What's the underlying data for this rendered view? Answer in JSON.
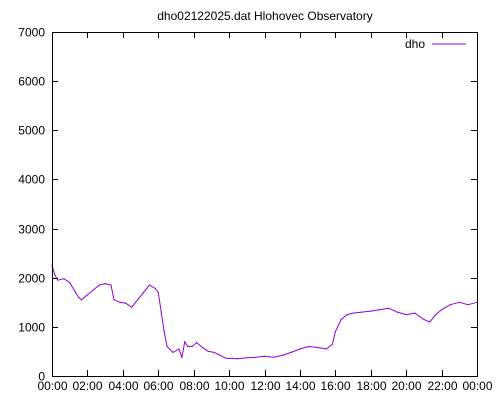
{
  "chart_data": {
    "type": "line",
    "title": "dho02122025.dat Hlohovec Observatory",
    "xlabel": "",
    "ylabel": "",
    "x_range_hours": [
      0,
      24
    ],
    "ylim": [
      0,
      7000
    ],
    "x_tick_labels": [
      "00:00",
      "02:00",
      "04:00",
      "06:00",
      "08:00",
      "10:00",
      "12:00",
      "14:00",
      "16:00",
      "18:00",
      "20:00",
      "22:00",
      "00:00"
    ],
    "y_ticks": [
      0,
      1000,
      2000,
      3000,
      4000,
      5000,
      6000,
      7000
    ],
    "grid": false,
    "legend_position": "top-right",
    "series": [
      {
        "name": "dho",
        "color": "#9400d3",
        "points": [
          [
            "00:00",
            2250
          ],
          [
            "00:10",
            2050
          ],
          [
            "00:20",
            1950
          ],
          [
            "00:40",
            1980
          ],
          [
            "01:00",
            1900
          ],
          [
            "01:20",
            1700
          ],
          [
            "01:30",
            1600
          ],
          [
            "01:40",
            1550
          ],
          [
            "02:00",
            1650
          ],
          [
            "02:20",
            1750
          ],
          [
            "02:40",
            1850
          ],
          [
            "03:00",
            1880
          ],
          [
            "03:20",
            1850
          ],
          [
            "03:30",
            1550
          ],
          [
            "03:50",
            1500
          ],
          [
            "04:10",
            1480
          ],
          [
            "04:30",
            1400
          ],
          [
            "04:50",
            1550
          ],
          [
            "05:10",
            1700
          ],
          [
            "05:30",
            1850
          ],
          [
            "05:50",
            1780
          ],
          [
            "06:00",
            1700
          ],
          [
            "06:10",
            1300
          ],
          [
            "06:20",
            900
          ],
          [
            "06:30",
            600
          ],
          [
            "06:50",
            480
          ],
          [
            "07:10",
            550
          ],
          [
            "07:20",
            380
          ],
          [
            "07:30",
            700
          ],
          [
            "07:40",
            600
          ],
          [
            "07:55",
            600
          ],
          [
            "08:10",
            680
          ],
          [
            "08:30",
            580
          ],
          [
            "08:50",
            500
          ],
          [
            "09:10",
            480
          ],
          [
            "09:30",
            420
          ],
          [
            "09:50",
            360
          ],
          [
            "10:30",
            350
          ],
          [
            "11:00",
            370
          ],
          [
            "11:30",
            380
          ],
          [
            "12:00",
            400
          ],
          [
            "12:30",
            380
          ],
          [
            "13:00",
            420
          ],
          [
            "13:30",
            480
          ],
          [
            "14:00",
            550
          ],
          [
            "14:30",
            600
          ],
          [
            "15:00",
            580
          ],
          [
            "15:30",
            550
          ],
          [
            "15:50",
            650
          ],
          [
            "16:00",
            900
          ],
          [
            "16:20",
            1150
          ],
          [
            "16:40",
            1250
          ],
          [
            "17:00",
            1280
          ],
          [
            "17:30",
            1300
          ],
          [
            "18:00",
            1320
          ],
          [
            "18:30",
            1350
          ],
          [
            "19:00",
            1380
          ],
          [
            "19:30",
            1300
          ],
          [
            "20:00",
            1250
          ],
          [
            "20:30",
            1280
          ],
          [
            "21:00",
            1150
          ],
          [
            "21:20",
            1100
          ],
          [
            "21:40",
            1250
          ],
          [
            "22:00",
            1350
          ],
          [
            "22:30",
            1450
          ],
          [
            "23:00",
            1500
          ],
          [
            "23:30",
            1450
          ],
          [
            "24:00",
            1500
          ]
        ]
      }
    ]
  }
}
